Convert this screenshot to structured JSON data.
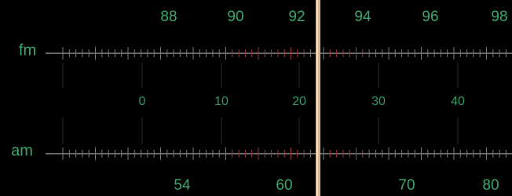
{
  "dial": {
    "fm": {
      "name": "fm",
      "labels": [
        "88",
        "90",
        "92",
        "94",
        "96",
        "98"
      ]
    },
    "middle": {
      "labels": [
        "0",
        "10",
        "20",
        "30",
        "40"
      ]
    },
    "am": {
      "name": "am",
      "labels": [
        "54",
        "60",
        "70",
        "80"
      ]
    }
  }
}
